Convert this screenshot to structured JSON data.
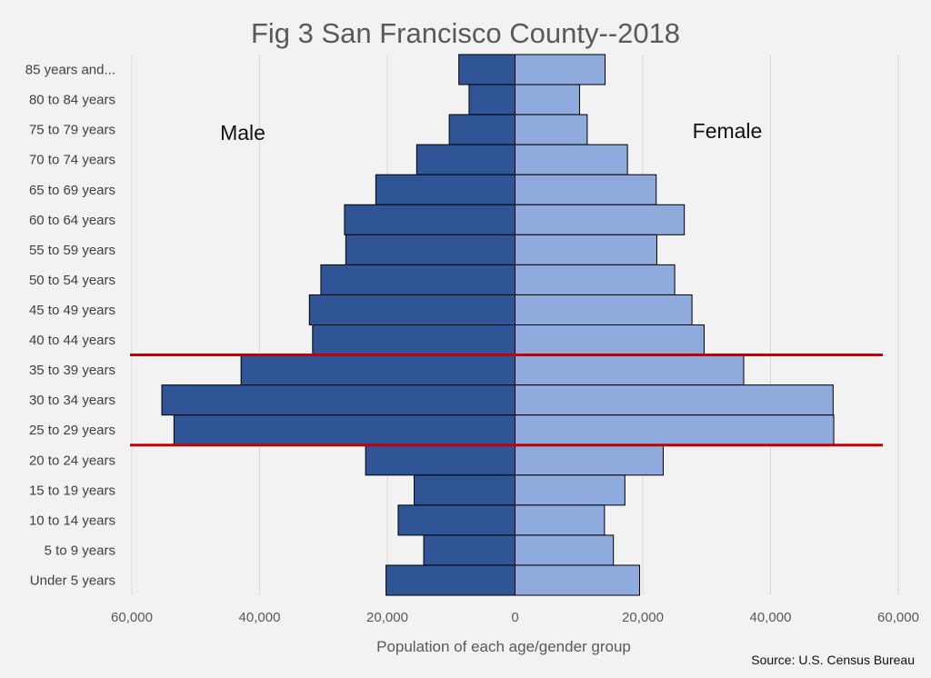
{
  "chart_data": {
    "type": "bar",
    "orientation": "horizontal",
    "title": "Fig 3 San Francisco County--2018",
    "xlabel": "Population of each age/gender group",
    "ylabel": "",
    "xlim": [
      -60000,
      60000
    ],
    "x_ticks": [
      "60,000",
      "40,000",
      "20,000",
      "0",
      "20,000",
      "40,000",
      "60,000"
    ],
    "grid": true,
    "categories": [
      "85 years and...",
      "80 to 84 years",
      "75 to 79 years",
      "70 to 74 years",
      "65 to 69 years",
      "60 to 64 years",
      "55 to 59 years",
      "50 to 54 years",
      "45 to 49 years",
      "40 to 44 years",
      "35 to 39 years",
      "30 to 34 years",
      "25 to 29 years",
      "20 to 24 years",
      "15 to 19 years",
      "10 to 14 years",
      "5 to 9 years",
      "Under 5 years"
    ],
    "series": [
      {
        "name": "Male",
        "color": "#2f5597",
        "values": [
          -8800,
          -7200,
          -10300,
          -15400,
          -21800,
          -26700,
          -26500,
          -30400,
          -32200,
          -31700,
          -42900,
          -55300,
          -53400,
          -23400,
          -15800,
          -18300,
          -14300,
          -20200
        ]
      },
      {
        "name": "Female",
        "color": "#8faadc",
        "values": [
          14100,
          10100,
          11300,
          17600,
          22100,
          26500,
          22200,
          25000,
          27700,
          29600,
          35800,
          49800,
          49900,
          23200,
          17200,
          14000,
          15400,
          19500
        ]
      }
    ],
    "annotations": [
      {
        "text": "Male"
      },
      {
        "text": "Female"
      },
      {
        "type": "highlight-lines",
        "color": "#c00000",
        "between_categories": [
          "35 to 39 years",
          "25 to 29 years"
        ]
      }
    ],
    "source": "Source: U.S. Census Bureau"
  }
}
